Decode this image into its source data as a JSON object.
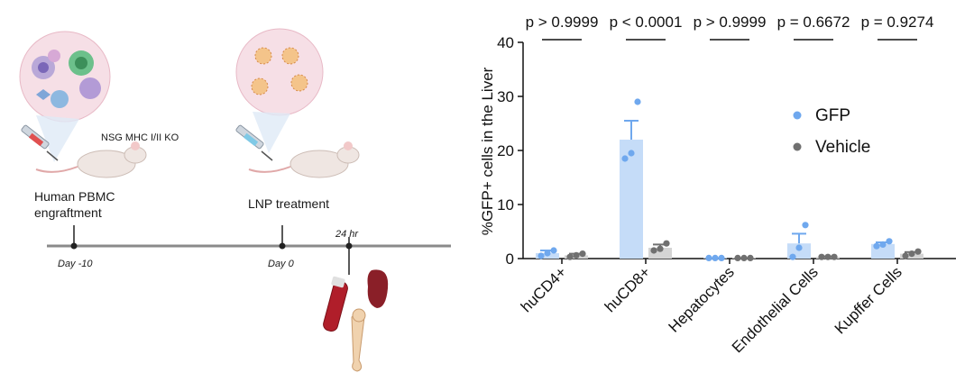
{
  "schematic": {
    "mouse_strain": "NSG MHC I/II KO",
    "step1_label_line1": "Human PBMC",
    "step1_label_line2": "engraftment",
    "step2_label": "LNP treatment",
    "timepoint_label": "24 hr",
    "timeline": [
      "Day -10",
      "Day 0"
    ]
  },
  "chart_data": {
    "type": "bar",
    "title": "",
    "xlabel": "",
    "ylabel": "%GFP+ cells in the Liver",
    "ylim": [
      0,
      40
    ],
    "yticks": [
      0,
      10,
      20,
      30,
      40
    ],
    "categories": [
      "huCD4+",
      "huCD8+",
      "Hepatocytes",
      "Endothelial Cells",
      "Kupffer Cells"
    ],
    "pvalues": [
      "p > 0.9999",
      "p < 0.0001",
      "p > 0.9999",
      "p = 0.6672",
      "p = 0.9274"
    ],
    "legend_position": "right",
    "series": [
      {
        "name": "GFP",
        "bar_color": "#c5dcf8",
        "point_color": "#6fa8ee",
        "values": [
          1.0,
          22.0,
          0.1,
          2.8,
          2.7
        ],
        "sem": [
          0.5,
          3.5,
          0,
          1.8,
          0.3
        ],
        "points": [
          [
            0.5,
            1.0,
            1.5
          ],
          [
            18.5,
            19.5,
            29.0
          ],
          [
            0.1,
            0.1,
            0.1
          ],
          [
            0.3,
            2.0,
            6.2
          ],
          [
            2.3,
            2.6,
            3.2
          ]
        ]
      },
      {
        "name": "Vehicle",
        "bar_color": "#d4d4d4",
        "point_color": "#707070",
        "values": [
          0.6,
          2.0,
          0.1,
          0.3,
          0.9
        ],
        "sem": [
          0.3,
          0.6,
          0,
          0.1,
          0.3
        ],
        "points": [
          [
            0.3,
            0.6,
            0.9
          ],
          [
            1.5,
            1.8,
            2.8
          ],
          [
            0.1,
            0.1,
            0.1
          ],
          [
            0.3,
            0.3,
            0.3
          ],
          [
            0.5,
            0.9,
            1.3
          ]
        ]
      }
    ]
  }
}
